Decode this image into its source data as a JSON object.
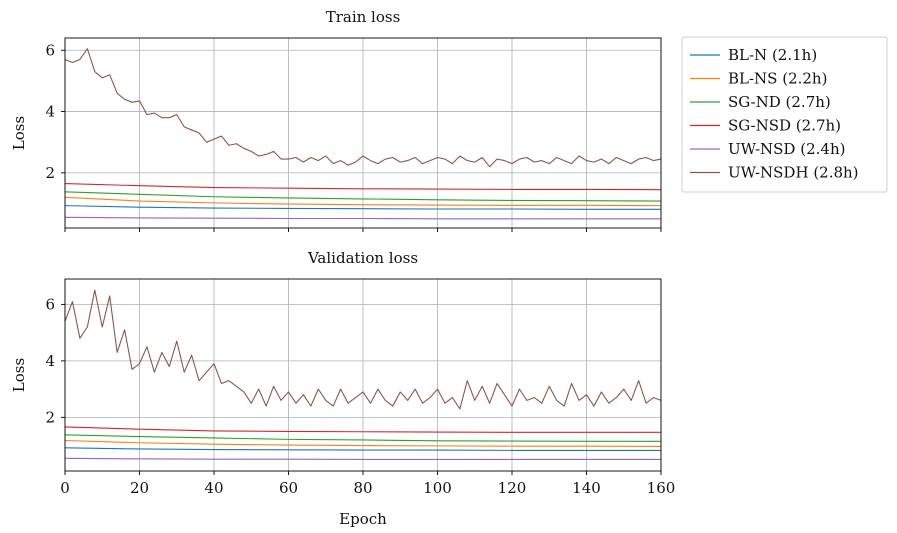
{
  "chart_data": [
    {
      "type": "line",
      "title": "Train loss",
      "xlabel": "",
      "ylabel": "Loss",
      "xlim": [
        0,
        160
      ],
      "ylim": [
        0.2,
        6.4
      ],
      "xticks": [
        0,
        20,
        40,
        60,
        80,
        100,
        120,
        140,
        160
      ],
      "yticks": [
        2,
        4,
        6
      ],
      "grid": true,
      "legend": "outside-right",
      "series": [
        {
          "name": "BL-N (2.1h)",
          "color": "#1f77b4",
          "x": [
            0,
            20,
            40,
            60,
            80,
            100,
            120,
            140,
            160
          ],
          "y": [
            0.93,
            0.88,
            0.85,
            0.84,
            0.83,
            0.82,
            0.82,
            0.81,
            0.81
          ]
        },
        {
          "name": "BL-NS (2.2h)",
          "color": "#ff7f0e",
          "x": [
            0,
            20,
            40,
            60,
            80,
            100,
            120,
            140,
            160
          ],
          "y": [
            1.2,
            1.08,
            1.02,
            0.98,
            0.96,
            0.95,
            0.94,
            0.94,
            0.93
          ]
        },
        {
          "name": "SG-ND (2.7h)",
          "color": "#2ca02c",
          "x": [
            0,
            20,
            40,
            60,
            80,
            100,
            120,
            140,
            160
          ],
          "y": [
            1.38,
            1.3,
            1.22,
            1.18,
            1.15,
            1.12,
            1.1,
            1.09,
            1.08
          ]
        },
        {
          "name": "SG-NSD (2.7h)",
          "color": "#d62728",
          "x": [
            0,
            20,
            40,
            60,
            80,
            100,
            120,
            140,
            160
          ],
          "y": [
            1.65,
            1.58,
            1.52,
            1.5,
            1.48,
            1.47,
            1.46,
            1.46,
            1.45
          ]
        },
        {
          "name": "UW-NSD (2.4h)",
          "color": "#9467bd",
          "x": [
            0,
            20,
            40,
            60,
            80,
            100,
            120,
            140,
            160
          ],
          "y": [
            0.55,
            0.53,
            0.52,
            0.51,
            0.51,
            0.5,
            0.5,
            0.5,
            0.5
          ]
        },
        {
          "name": "UW-NSDH (2.8h)",
          "color": "#8c564b",
          "x": [
            0,
            2,
            4,
            6,
            8,
            10,
            12,
            14,
            16,
            18,
            20,
            22,
            24,
            26,
            28,
            30,
            32,
            34,
            36,
            38,
            40,
            42,
            44,
            46,
            48,
            50,
            52,
            54,
            56,
            58,
            60,
            62,
            64,
            66,
            68,
            70,
            72,
            74,
            76,
            78,
            80,
            82,
            84,
            86,
            88,
            90,
            92,
            94,
            96,
            98,
            100,
            102,
            104,
            106,
            108,
            110,
            112,
            114,
            116,
            118,
            120,
            122,
            124,
            126,
            128,
            130,
            132,
            134,
            136,
            138,
            140,
            142,
            144,
            146,
            148,
            150,
            152,
            154,
            156,
            158,
            160
          ],
          "y": [
            5.7,
            5.6,
            5.7,
            6.05,
            5.3,
            5.1,
            5.2,
            4.6,
            4.4,
            4.3,
            4.35,
            3.9,
            3.95,
            3.8,
            3.8,
            3.9,
            3.5,
            3.4,
            3.3,
            3.0,
            3.1,
            3.2,
            2.9,
            2.95,
            2.8,
            2.7,
            2.55,
            2.6,
            2.7,
            2.45,
            2.45,
            2.5,
            2.35,
            2.5,
            2.4,
            2.55,
            2.3,
            2.4,
            2.25,
            2.35,
            2.55,
            2.4,
            2.3,
            2.45,
            2.5,
            2.35,
            2.4,
            2.5,
            2.3,
            2.4,
            2.5,
            2.45,
            2.3,
            2.55,
            2.4,
            2.35,
            2.5,
            2.2,
            2.45,
            2.4,
            2.3,
            2.45,
            2.5,
            2.35,
            2.4,
            2.3,
            2.5,
            2.4,
            2.3,
            2.55,
            2.4,
            2.35,
            2.45,
            2.3,
            2.5,
            2.4,
            2.3,
            2.45,
            2.5,
            2.4,
            2.45
          ]
        }
      ]
    },
    {
      "type": "line",
      "title": "Validation loss",
      "xlabel": "Epoch",
      "ylabel": "Loss",
      "xlim": [
        0,
        160
      ],
      "ylim": [
        0.1,
        6.9
      ],
      "xticks": [
        0,
        20,
        40,
        60,
        80,
        100,
        120,
        140,
        160
      ],
      "yticks": [
        2,
        4,
        6
      ],
      "grid": true,
      "legend": "outside-right",
      "series": [
        {
          "name": "BL-N (2.1h)",
          "color": "#1f77b4",
          "x": [
            0,
            20,
            40,
            60,
            80,
            100,
            120,
            140,
            160
          ],
          "y": [
            0.92,
            0.88,
            0.86,
            0.85,
            0.84,
            0.84,
            0.83,
            0.83,
            0.83
          ]
        },
        {
          "name": "BL-NS (2.2h)",
          "color": "#ff7f0e",
          "x": [
            0,
            20,
            40,
            60,
            80,
            100,
            120,
            140,
            160
          ],
          "y": [
            1.18,
            1.1,
            1.05,
            1.02,
            1.0,
            0.99,
            0.98,
            0.98,
            0.97
          ]
        },
        {
          "name": "SG-ND (2.7h)",
          "color": "#2ca02c",
          "x": [
            0,
            20,
            40,
            60,
            80,
            100,
            120,
            140,
            160
          ],
          "y": [
            1.38,
            1.32,
            1.27,
            1.22,
            1.2,
            1.17,
            1.16,
            1.15,
            1.15
          ]
        },
        {
          "name": "SG-NSD (2.7h)",
          "color": "#d62728",
          "x": [
            0,
            20,
            40,
            60,
            80,
            100,
            120,
            140,
            160
          ],
          "y": [
            1.66,
            1.58,
            1.52,
            1.5,
            1.49,
            1.48,
            1.47,
            1.47,
            1.47
          ]
        },
        {
          "name": "UW-NSD (2.4h)",
          "color": "#9467bd",
          "x": [
            0,
            20,
            40,
            60,
            80,
            100,
            120,
            140,
            160
          ],
          "y": [
            0.55,
            0.53,
            0.52,
            0.52,
            0.51,
            0.51,
            0.51,
            0.51,
            0.51
          ]
        },
        {
          "name": "UW-NSDH (2.8h)",
          "color": "#8c564b",
          "x": [
            0,
            2,
            4,
            6,
            8,
            10,
            12,
            14,
            16,
            18,
            20,
            22,
            24,
            26,
            28,
            30,
            32,
            34,
            36,
            38,
            40,
            42,
            44,
            46,
            48,
            50,
            52,
            54,
            56,
            58,
            60,
            62,
            64,
            66,
            68,
            70,
            72,
            74,
            76,
            78,
            80,
            82,
            84,
            86,
            88,
            90,
            92,
            94,
            96,
            98,
            100,
            102,
            104,
            106,
            108,
            110,
            112,
            114,
            116,
            118,
            120,
            122,
            124,
            126,
            128,
            130,
            132,
            134,
            136,
            138,
            140,
            142,
            144,
            146,
            148,
            150,
            152,
            154,
            156,
            158,
            160
          ],
          "y": [
            5.4,
            6.1,
            4.8,
            5.2,
            6.5,
            5.2,
            6.3,
            4.3,
            5.1,
            3.7,
            3.9,
            4.5,
            3.6,
            4.3,
            3.8,
            4.7,
            3.6,
            4.2,
            3.3,
            3.6,
            3.9,
            3.2,
            3.3,
            3.1,
            2.9,
            2.5,
            3.0,
            2.4,
            3.1,
            2.6,
            2.9,
            2.5,
            2.8,
            2.4,
            3.0,
            2.6,
            2.4,
            3.0,
            2.5,
            2.7,
            2.9,
            2.5,
            3.0,
            2.6,
            2.4,
            2.9,
            2.6,
            3.0,
            2.5,
            2.7,
            3.0,
            2.5,
            2.7,
            2.3,
            3.3,
            2.6,
            3.1,
            2.5,
            3.2,
            2.8,
            2.4,
            3.0,
            2.6,
            2.7,
            2.5,
            3.1,
            2.6,
            2.4,
            3.2,
            2.6,
            2.8,
            2.4,
            2.9,
            2.5,
            2.7,
            3.0,
            2.6,
            3.3,
            2.5,
            2.7,
            2.6
          ]
        }
      ]
    }
  ]
}
